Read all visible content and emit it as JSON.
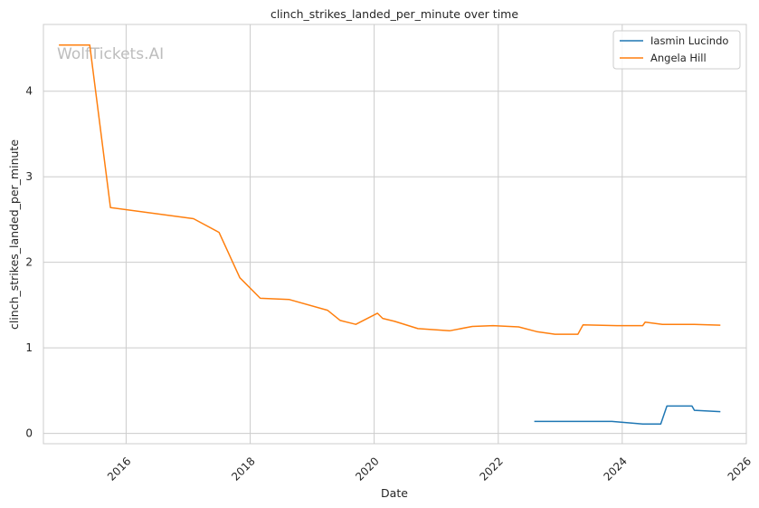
{
  "watermark": "WolfTickets.AI",
  "colors": {
    "grid": "#cccccc",
    "axes": "#cccccc",
    "background": "#ffffff"
  },
  "chart_data": {
    "type": "line",
    "title": "clinch_strikes_landed_per_minute over time",
    "xlabel": "Date",
    "ylabel": "clinch_strikes_landed_per_minute",
    "x_ticks": [
      "2016",
      "2018",
      "2020",
      "2022",
      "2024",
      "2026"
    ],
    "y_ticks": [
      "0",
      "1",
      "2",
      "3",
      "4"
    ],
    "xlim": [
      "2014-09-01",
      "2026-01-01"
    ],
    "ylim": [
      -0.12,
      4.78
    ],
    "grid": true,
    "legend_position": "top-right",
    "series": [
      {
        "name": "Iasmin Lucindo",
        "color": "#1f77b4",
        "points": [
          [
            "2022-08-01",
            0.14
          ],
          [
            "2023-03-01",
            0.14
          ],
          [
            "2023-11-01",
            0.14
          ],
          [
            "2024-05-01",
            0.11
          ],
          [
            "2024-08-15",
            0.11
          ],
          [
            "2024-09-20",
            0.32
          ],
          [
            "2025-02-15",
            0.32
          ],
          [
            "2025-03-01",
            0.27
          ],
          [
            "2025-08-01",
            0.255
          ]
        ]
      },
      {
        "name": "Angela Hill",
        "color": "#ff7f0e",
        "points": [
          [
            "2014-12-01",
            4.54
          ],
          [
            "2015-06-01",
            4.54
          ],
          [
            "2015-10-01",
            2.64
          ],
          [
            "2017-02-01",
            2.51
          ],
          [
            "2017-07-01",
            2.35
          ],
          [
            "2017-11-01",
            1.82
          ],
          [
            "2018-03-01",
            1.58
          ],
          [
            "2018-08-20",
            1.565
          ],
          [
            "2019-04-01",
            1.44
          ],
          [
            "2019-06-15",
            1.32
          ],
          [
            "2019-09-15",
            1.275
          ],
          [
            "2020-01-20",
            1.405
          ],
          [
            "2020-02-20",
            1.345
          ],
          [
            "2020-05-01",
            1.31
          ],
          [
            "2020-09-15",
            1.225
          ],
          [
            "2021-03-20",
            1.2
          ],
          [
            "2021-08-01",
            1.25
          ],
          [
            "2021-12-01",
            1.26
          ],
          [
            "2022-05-01",
            1.245
          ],
          [
            "2022-08-15",
            1.19
          ],
          [
            "2022-12-01",
            1.16
          ],
          [
            "2023-04-15",
            1.16
          ],
          [
            "2023-05-15",
            1.27
          ],
          [
            "2023-12-01",
            1.26
          ],
          [
            "2024-05-01",
            1.26
          ],
          [
            "2024-05-15",
            1.3
          ],
          [
            "2024-08-25",
            1.275
          ],
          [
            "2025-03-01",
            1.275
          ],
          [
            "2025-08-01",
            1.265
          ]
        ]
      }
    ]
  }
}
